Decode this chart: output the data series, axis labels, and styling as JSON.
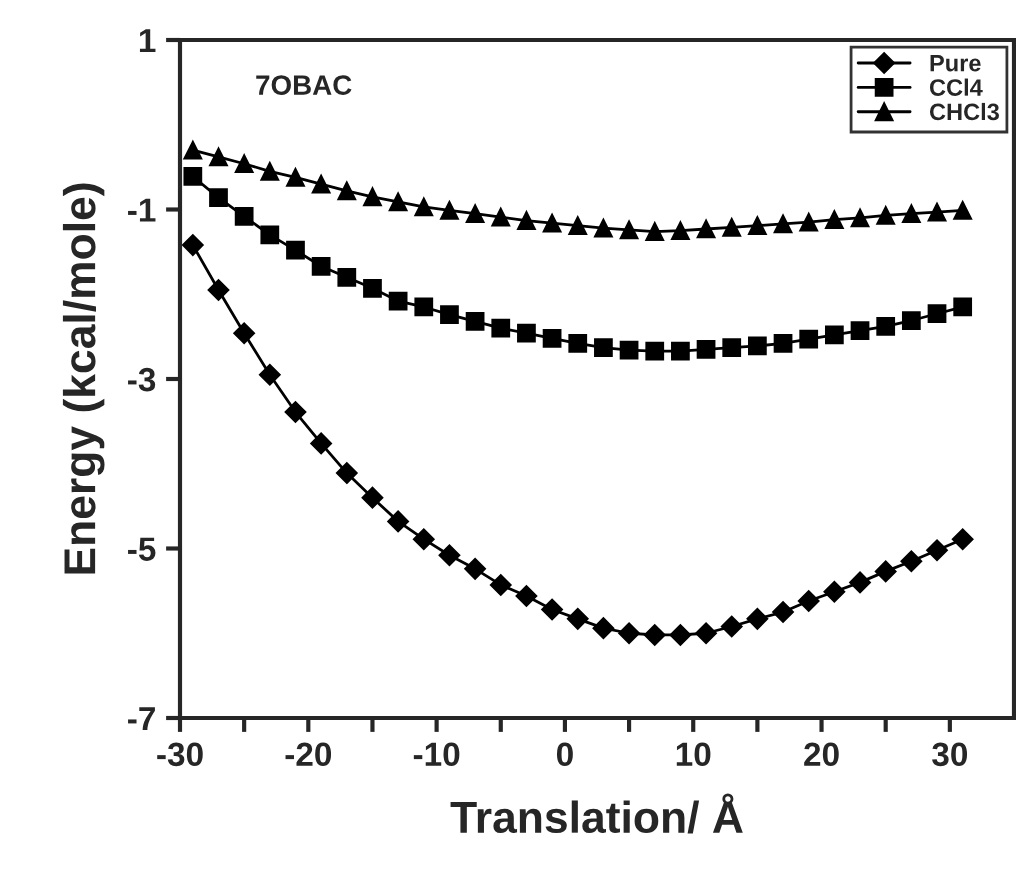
{
  "chart_data": {
    "type": "line",
    "xlabel": "Translation/ Å",
    "ylabel": "Energy (kcal/mole)",
    "annotations": [
      "7OBAC"
    ],
    "x": [
      -29,
      -27,
      -25,
      -23,
      -21,
      -19,
      -17,
      -15,
      -13,
      -11,
      -9,
      -7,
      -5,
      -3,
      -1,
      1,
      3,
      5,
      7,
      9,
      11,
      13,
      15,
      17,
      19,
      21,
      23,
      25,
      27,
      29,
      31
    ],
    "series": [
      {
        "name": "Pure",
        "color": "#000000",
        "marker": "diamond",
        "values": [
          -1.42,
          -1.95,
          -2.46,
          -2.95,
          -3.39,
          -3.76,
          -4.11,
          -4.4,
          -4.68,
          -4.89,
          -5.08,
          -5.24,
          -5.43,
          -5.56,
          -5.72,
          -5.83,
          -5.94,
          -6.0,
          -6.02,
          -6.02,
          -6.0,
          -5.92,
          -5.83,
          -5.75,
          -5.62,
          -5.51,
          -5.4,
          -5.27,
          -5.15,
          -5.02,
          -4.89
        ]
      },
      {
        "name": "CCl4",
        "color": "#000000",
        "marker": "square",
        "values": [
          -0.61,
          -0.86,
          -1.08,
          -1.3,
          -1.48,
          -1.67,
          -1.8,
          -1.93,
          -2.08,
          -2.15,
          -2.24,
          -2.32,
          -2.4,
          -2.46,
          -2.52,
          -2.58,
          -2.63,
          -2.66,
          -2.67,
          -2.67,
          -2.65,
          -2.63,
          -2.61,
          -2.58,
          -2.53,
          -2.48,
          -2.43,
          -2.38,
          -2.31,
          -2.23,
          -2.15
        ]
      },
      {
        "name": "CHCl3",
        "color": "#000000",
        "marker": "triangle",
        "values": [
          -0.3,
          -0.38,
          -0.46,
          -0.55,
          -0.62,
          -0.7,
          -0.78,
          -0.85,
          -0.91,
          -0.97,
          -1.01,
          -1.05,
          -1.09,
          -1.13,
          -1.16,
          -1.19,
          -1.22,
          -1.24,
          -1.26,
          -1.25,
          -1.23,
          -1.21,
          -1.19,
          -1.17,
          -1.15,
          -1.12,
          -1.1,
          -1.07,
          -1.05,
          -1.03,
          -1.01
        ]
      }
    ],
    "xlim": [
      -30,
      35
    ],
    "xticks": [
      -30,
      {
        "value": -25,
        "label": null
      },
      -20,
      {
        "value": -15,
        "label": null
      },
      -10,
      {
        "value": -5,
        "label": null
      },
      0,
      {
        "value": 5,
        "label": null
      },
      10,
      {
        "value": 15,
        "label": null
      },
      20,
      {
        "value": 25,
        "label": null
      },
      30
    ],
    "ylim": [
      -7,
      1
    ],
    "yticks": [
      1,
      -1,
      -3,
      -5,
      -7
    ],
    "grid": false,
    "legend": "top right",
    "line_style": "solid"
  }
}
